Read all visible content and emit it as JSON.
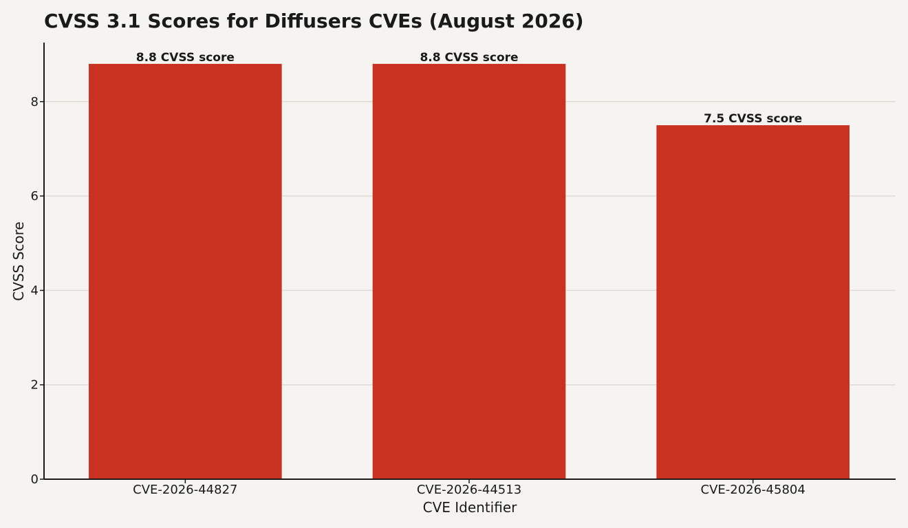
{
  "chart_data": {
    "type": "bar",
    "title": "CVSS 3.1 Scores for Diffusers CVEs (August 2026)",
    "xlabel": "CVE Identifier",
    "ylabel": "CVSS Score",
    "categories": [
      "CVE-2026-44827",
      "CVE-2026-44513",
      "CVE-2026-45804"
    ],
    "values": [
      8.8,
      8.8,
      7.5
    ],
    "data_labels": [
      "8.8 CVSS score",
      "8.8 CVSS score",
      "7.5 CVSS score"
    ],
    "ylim": [
      0,
      9.25
    ],
    "yticks": [
      0,
      2,
      4,
      6,
      8
    ],
    "grid": true,
    "bar_color": "#c93220",
    "legend": "none"
  }
}
